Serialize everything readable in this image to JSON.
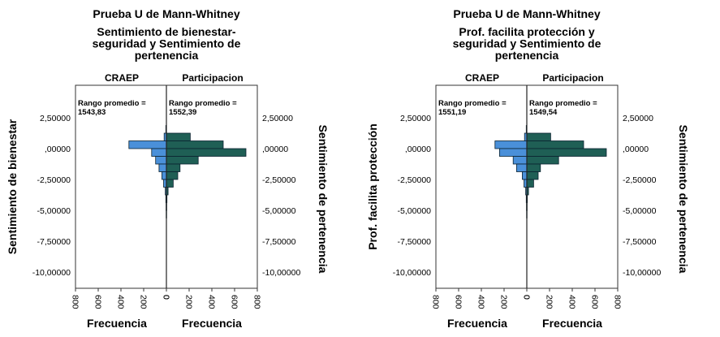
{
  "chart_data": [
    {
      "type": "bar",
      "subtype": "back-to-back-histogram",
      "title": "Prueba U de Mann-Whitney",
      "subtitle": [
        "Sentimiento de bienestar-",
        "seguridad y Sentimiento de",
        "pertenencia"
      ],
      "left_group": "CRAEP",
      "right_group": "Participacion",
      "left_rank_label": "Rango promedio =",
      "left_rank_value": "1543,83",
      "right_rank_label": "Rango promedio =",
      "right_rank_value": "1552,39",
      "ylabel_left": "Sentimiento de bienestar",
      "ylabel_right": "Sentimiento de pertenencia",
      "xlabel_left": "Frecuencia",
      "xlabel_right": "Frecuencia",
      "y_ticks": [
        "2,50000",
        ",00000",
        "-2,50000",
        "-5,00000",
        "-7,50000",
        "-10,00000"
      ],
      "x_ticks_left": [
        "800",
        "600",
        "400",
        "200",
        "0"
      ],
      "x_ticks_right": [
        "0",
        "200",
        "400",
        "600",
        "800"
      ],
      "xlim": [
        0,
        800
      ],
      "ylim": [
        -11,
        4
      ],
      "bin_width": 0.625,
      "bin_centers": [
        1.5625,
        0.9375,
        0.3125,
        -0.3125,
        -0.9375,
        -1.5625,
        -2.1875,
        -2.8125,
        -3.4375,
        -4.0625,
        -4.6875,
        -5.3125
      ],
      "left_counts": [
        5,
        20,
        330,
        130,
        95,
        65,
        40,
        25,
        10,
        5,
        3,
        2
      ],
      "right_counts": [
        0,
        210,
        500,
        700,
        280,
        120,
        100,
        60,
        15,
        5,
        3,
        2
      ],
      "colors": {
        "left_bar": "#4a90d9",
        "right_bar": "#1f5f55",
        "outline": "#0b2230"
      }
    },
    {
      "type": "bar",
      "subtype": "back-to-back-histogram",
      "title": "Prueba U de Mann-Whitney",
      "subtitle": [
        "Prof. facilita protección y",
        "seguridad y Sentimiento de",
        "pertenencia"
      ],
      "left_group": "CRAEP",
      "right_group": "Participacion",
      "left_rank_label": "Rango promedio =",
      "left_rank_value": "1551,19",
      "right_rank_label": "Rango promedio =",
      "right_rank_value": "1549,54",
      "ylabel_left": "Prof. facilita protección",
      "ylabel_right": "Sentimiento de pertenencia",
      "xlabel_left": "Frecuencia",
      "xlabel_right": "Frecuencia",
      "y_ticks": [
        "2,50000",
        ",00000",
        "-2,50000",
        "-5,00000",
        "-7,50000",
        "-10,00000"
      ],
      "x_ticks_left": [
        "800",
        "600",
        "400",
        "200",
        "0"
      ],
      "x_ticks_right": [
        "0",
        "200",
        "400",
        "600",
        "800"
      ],
      "xlim": [
        0,
        800
      ],
      "ylim": [
        -11,
        4
      ],
      "bin_width": 0.625,
      "bin_centers": [
        1.5625,
        0.9375,
        0.3125,
        -0.3125,
        -0.9375,
        -1.5625,
        -2.1875,
        -2.8125,
        -3.4375,
        -4.0625,
        -4.6875,
        -5.3125
      ],
      "left_counts": [
        5,
        20,
        280,
        240,
        120,
        90,
        40,
        25,
        10,
        5,
        3,
        2
      ],
      "right_counts": [
        0,
        210,
        500,
        700,
        280,
        120,
        100,
        60,
        15,
        5,
        3,
        2
      ],
      "colors": {
        "left_bar": "#4a90d9",
        "right_bar": "#1f5f55",
        "outline": "#0b2230"
      }
    }
  ]
}
